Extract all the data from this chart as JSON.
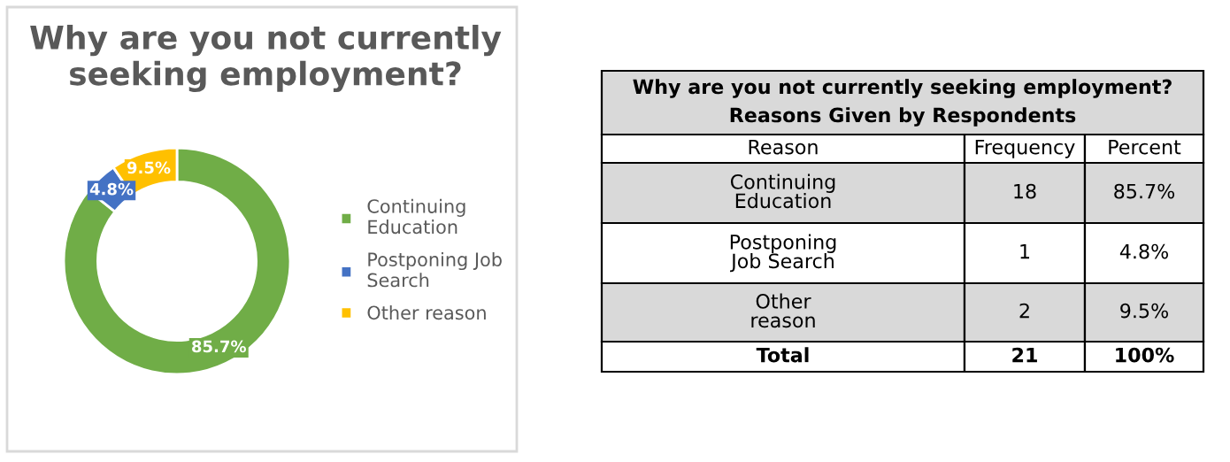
{
  "chart_data": [
    {
      "type": "donut",
      "title": "Why are you not currently\nseeking employment?",
      "categories": [
        "Continuing\nEducation",
        "Postponing Job\nSearch",
        "Other reason"
      ],
      "values": [
        85.7,
        4.8,
        9.5
      ],
      "colors": [
        "#70ad47",
        "#4472c4",
        "#ffc000"
      ],
      "value_labels": [
        "85.7%",
        "4.8%",
        "9.5%"
      ],
      "legend": "right"
    },
    {
      "type": "other",
      "data_labels": true,
      "title": "Why are you not currently seeking employment?",
      "subtitle": "Reasons Given by Respondents",
      "xlabel": "Reason",
      "categories": [
        "Continuing\nEducation",
        "Postponing\nJob Search",
        "Other\nreason",
        "Total"
      ],
      "series": [
        {
          "name": "Frequency",
          "color": "#000000",
          "values": [
            18,
            1,
            2,
            21
          ]
        },
        {
          "name": "Percent",
          "color": "#000000",
          "values": [
            85.7,
            4.8,
            9.5,
            100
          ],
          "value_labels": [
            "85.7%",
            "4.8%",
            "9.5%",
            "100%"
          ]
        }
      ]
    }
  ]
}
